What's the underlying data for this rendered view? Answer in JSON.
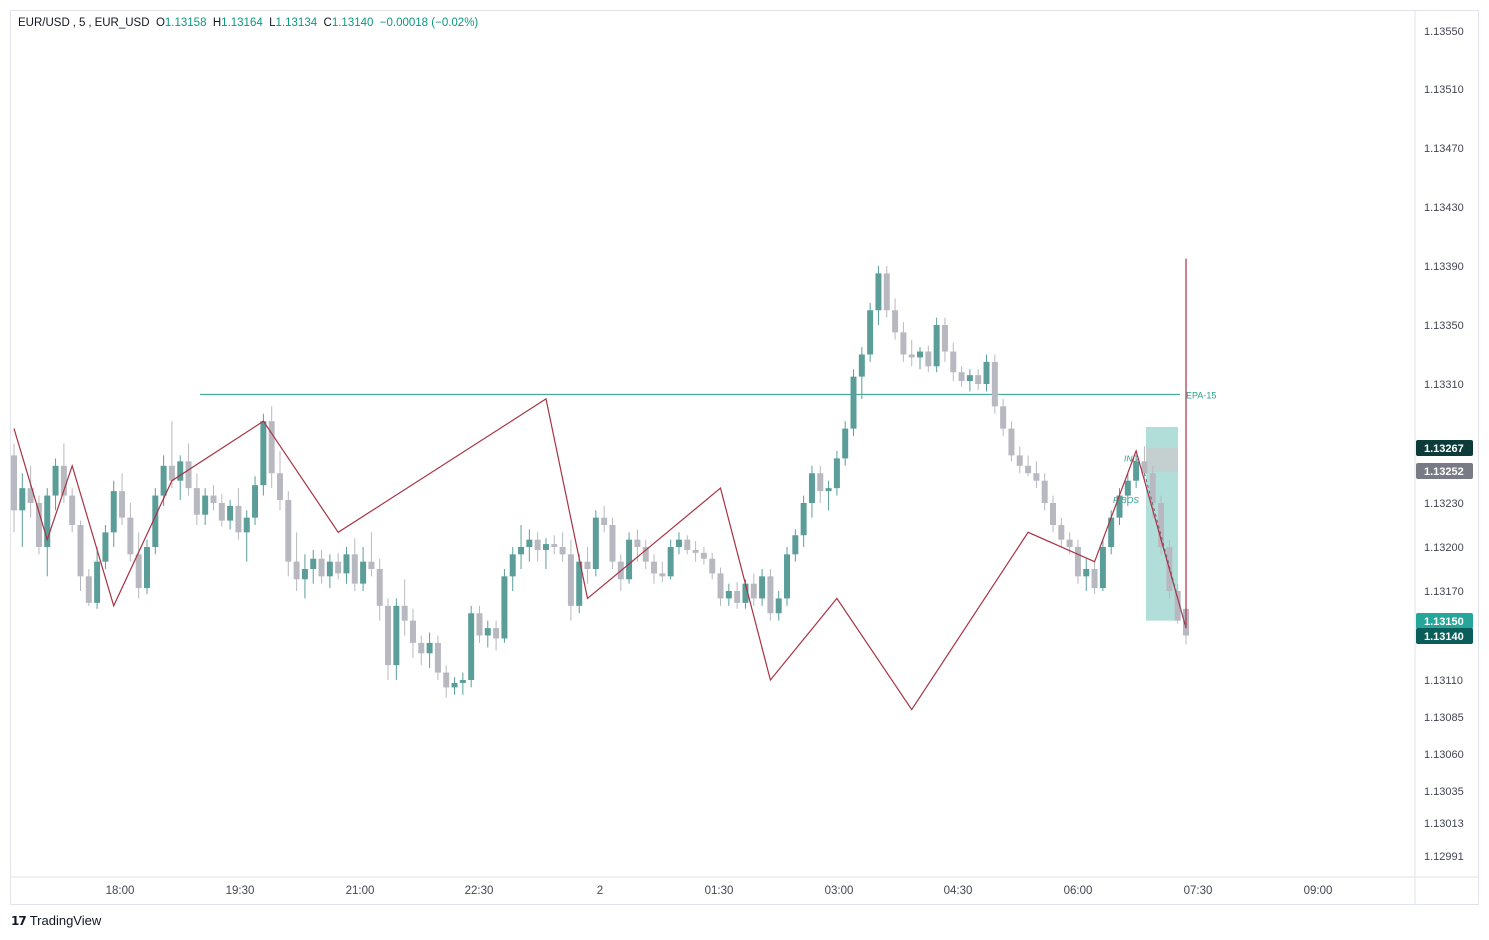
{
  "header": {
    "symbol": "EUR/USD",
    "interval": "5",
    "source": "EUR_USD",
    "o_label": "O",
    "o_value": "1.13158",
    "h_label": "H",
    "h_value": "1.13164",
    "l_label": "L",
    "l_value": "1.13134",
    "c_label": "C",
    "c_value": "1.13140",
    "change": "−0.00018 (−0.02%)"
  },
  "brand": {
    "name": "TradingView",
    "logo_icon": "tradingview-logo-icon"
  },
  "colors": {
    "up": "#5b9e99",
    "down": "#b8b8c0",
    "zigzag": "#a83244",
    "level": "#2aa08a",
    "box_green": "#a5d8d3",
    "box_gray": "#c8cccc",
    "tag_dark": "#0d3b3a",
    "tag_gray": "#787b86",
    "tag_green": "#26a69a",
    "tag_teal": "#0b5d5a"
  },
  "chart_data": {
    "type": "candlestick",
    "ylim": [
      1.12975,
      1.13565
    ],
    "y_ticks": [
      "1.13550",
      "1.13510",
      "1.13470",
      "1.13430",
      "1.13390",
      "1.13350",
      "1.13310",
      "1.13230",
      "1.13200",
      "1.13170",
      "1.13110",
      "1.13085",
      "1.13060",
      "1.13035",
      "1.13013",
      "1.12991"
    ],
    "x_ticks": [
      "18:00",
      "19:30",
      "21:00",
      "22:30",
      "2",
      "01:30",
      "03:00",
      "04:30",
      "06:00",
      "07:30",
      "09:00"
    ],
    "price_tags": [
      {
        "value": "1.13267",
        "style": "dark"
      },
      {
        "value": "1.13252",
        "style": "gray"
      },
      {
        "value": "1.13150",
        "style": "green"
      },
      {
        "value": "1.13140",
        "style": "teal"
      }
    ],
    "level_line": {
      "label": "EPA-15",
      "price": 1.13303
    },
    "annotations": [
      {
        "text": "IND",
        "price": 1.1326
      },
      {
        "text": "F-BOS",
        "price": 1.13232
      }
    ],
    "zigzag": [
      [
        1.1328,
        1.13205,
        1.13255,
        1.1316,
        1.13245,
        1.13285,
        1.1321,
        1.133,
        1.13165,
        1.1324,
        1.1311,
        1.13165,
        1.1309,
        1.1321,
        1.1319,
        1.13265,
        1.13145,
        1.13395,
        1.13305,
        1.13175,
        1.13255,
        1.1325,
        1.13155
      ]
    ],
    "zigzag_time_index": [
      0,
      4,
      7,
      12,
      19,
      30,
      39,
      64,
      69,
      85,
      91,
      99,
      108,
      122,
      130,
      135,
      168,
      204,
      235,
      277,
      290,
      295,
      305
    ],
    "candles": [
      [
        1.13262,
        1.1327,
        1.1321,
        1.13225
      ],
      [
        1.13225,
        1.1325,
        1.132,
        1.1324
      ],
      [
        1.1324,
        1.13255,
        1.1322,
        1.1323
      ],
      [
        1.1323,
        1.13235,
        1.13195,
        1.132
      ],
      [
        1.132,
        1.1324,
        1.1318,
        1.13235
      ],
      [
        1.13235,
        1.1326,
        1.13225,
        1.13255
      ],
      [
        1.13255,
        1.1327,
        1.1323,
        1.13235
      ],
      [
        1.13235,
        1.1324,
        1.1321,
        1.13215
      ],
      [
        1.13215,
        1.13218,
        1.1317,
        1.1318
      ],
      [
        1.1318,
        1.13185,
        1.1316,
        1.13162
      ],
      [
        1.13162,
        1.132,
        1.13158,
        1.1319
      ],
      [
        1.1319,
        1.13215,
        1.13185,
        1.1321
      ],
      [
        1.1321,
        1.13245,
        1.132,
        1.13238
      ],
      [
        1.13238,
        1.1325,
        1.13215,
        1.1322
      ],
      [
        1.1322,
        1.1323,
        1.1319,
        1.13195
      ],
      [
        1.13195,
        1.1321,
        1.13165,
        1.13172
      ],
      [
        1.13172,
        1.13205,
        1.13168,
        1.132
      ],
      [
        1.132,
        1.1324,
        1.13195,
        1.13235
      ],
      [
        1.13235,
        1.13262,
        1.13228,
        1.13255
      ],
      [
        1.13255,
        1.13285,
        1.1324,
        1.13245
      ],
      [
        1.13245,
        1.13262,
        1.13232,
        1.13258
      ],
      [
        1.13258,
        1.1327,
        1.13235,
        1.1324
      ],
      [
        1.1324,
        1.1325,
        1.13215,
        1.13222
      ],
      [
        1.13222,
        1.1324,
        1.13215,
        1.13235
      ],
      [
        1.13235,
        1.13242,
        1.13225,
        1.1323
      ],
      [
        1.1323,
        1.13236,
        1.13214,
        1.13218
      ],
      [
        1.13218,
        1.13232,
        1.13212,
        1.13228
      ],
      [
        1.13228,
        1.1324,
        1.13205,
        1.1321
      ],
      [
        1.1321,
        1.13225,
        1.1319,
        1.1322
      ],
      [
        1.1322,
        1.13248,
        1.13215,
        1.13242
      ],
      [
        1.13242,
        1.1329,
        1.13235,
        1.13285
      ],
      [
        1.13285,
        1.13295,
        1.1324,
        1.1325
      ],
      [
        1.1325,
        1.13265,
        1.13225,
        1.13232
      ],
      [
        1.13232,
        1.13238,
        1.1318,
        1.1319
      ],
      [
        1.1319,
        1.1321,
        1.1317,
        1.13178
      ],
      [
        1.13178,
        1.13195,
        1.13165,
        1.13185
      ],
      [
        1.13185,
        1.13198,
        1.13175,
        1.13192
      ],
      [
        1.13192,
        1.13198,
        1.13175,
        1.1318
      ],
      [
        1.1318,
        1.13195,
        1.13172,
        1.1319
      ],
      [
        1.1319,
        1.13196,
        1.13178,
        1.13182
      ],
      [
        1.13182,
        1.132,
        1.13175,
        1.13195
      ],
      [
        1.13195,
        1.13206,
        1.1317,
        1.13175
      ],
      [
        1.13175,
        1.132,
        1.1317,
        1.1319
      ],
      [
        1.1319,
        1.1321,
        1.1318,
        1.13185
      ],
      [
        1.13185,
        1.13192,
        1.1315,
        1.1316
      ],
      [
        1.1316,
        1.13165,
        1.1311,
        1.1312
      ],
      [
        1.1312,
        1.13165,
        1.1311,
        1.1316
      ],
      [
        1.1316,
        1.13178,
        1.1314,
        1.1315
      ],
      [
        1.1315,
        1.13158,
        1.13125,
        1.13135
      ],
      [
        1.13135,
        1.1314,
        1.1312,
        1.13128
      ],
      [
        1.13128,
        1.13142,
        1.13118,
        1.13135
      ],
      [
        1.13135,
        1.1314,
        1.1311,
        1.13115
      ],
      [
        1.13115,
        1.1312,
        1.13098,
        1.13105
      ],
      [
        1.13105,
        1.13112,
        1.131,
        1.13108
      ],
      [
        1.13108,
        1.13115,
        1.131,
        1.1311
      ],
      [
        1.1311,
        1.1316,
        1.13105,
        1.13155
      ],
      [
        1.13155,
        1.1316,
        1.13135,
        1.1314
      ],
      [
        1.1314,
        1.1315,
        1.13132,
        1.13145
      ],
      [
        1.13145,
        1.1315,
        1.1313,
        1.13138
      ],
      [
        1.13138,
        1.13185,
        1.13135,
        1.1318
      ],
      [
        1.1318,
        1.132,
        1.1317,
        1.13195
      ],
      [
        1.13195,
        1.13215,
        1.13185,
        1.132
      ],
      [
        1.132,
        1.13212,
        1.1319,
        1.13205
      ],
      [
        1.13205,
        1.1321,
        1.1319,
        1.13198
      ],
      [
        1.13198,
        1.13206,
        1.13185,
        1.13202
      ],
      [
        1.13202,
        1.13208,
        1.13195,
        1.132
      ],
      [
        1.132,
        1.1321,
        1.1319,
        1.13195
      ],
      [
        1.13195,
        1.13205,
        1.1315,
        1.1316
      ],
      [
        1.1316,
        1.13195,
        1.13155,
        1.1319
      ],
      [
        1.1319,
        1.132,
        1.13175,
        1.13185
      ],
      [
        1.13185,
        1.13225,
        1.1318,
        1.1322
      ],
      [
        1.1322,
        1.13228,
        1.1321,
        1.13215
      ],
      [
        1.13215,
        1.1322,
        1.13185,
        1.1319
      ],
      [
        1.1319,
        1.13195,
        1.1317,
        1.13178
      ],
      [
        1.13178,
        1.1321,
        1.13175,
        1.13205
      ],
      [
        1.13205,
        1.13212,
        1.1319,
        1.132
      ],
      [
        1.132,
        1.13205,
        1.13185,
        1.1319
      ],
      [
        1.1319,
        1.13195,
        1.13175,
        1.13182
      ],
      [
        1.13182,
        1.1319,
        1.13176,
        1.1318
      ],
      [
        1.1318,
        1.13205,
        1.13178,
        1.132
      ],
      [
        1.132,
        1.1321,
        1.13195,
        1.13205
      ],
      [
        1.13205,
        1.13208,
        1.13195,
        1.13198
      ],
      [
        1.13198,
        1.13204,
        1.1319,
        1.13196
      ],
      [
        1.13196,
        1.132,
        1.13188,
        1.13192
      ],
      [
        1.13192,
        1.13196,
        1.13178,
        1.13182
      ],
      [
        1.13182,
        1.13186,
        1.1316,
        1.13165
      ],
      [
        1.13165,
        1.13175,
        1.1316,
        1.1317
      ],
      [
        1.1317,
        1.13176,
        1.13158,
        1.13162
      ],
      [
        1.13162,
        1.13178,
        1.13158,
        1.13175
      ],
      [
        1.13175,
        1.13182,
        1.1316,
        1.13165
      ],
      [
        1.13165,
        1.13185,
        1.1316,
        1.1318
      ],
      [
        1.1318,
        1.13185,
        1.1315,
        1.13155
      ],
      [
        1.13155,
        1.1317,
        1.1315,
        1.13165
      ],
      [
        1.13165,
        1.132,
        1.1316,
        1.13195
      ],
      [
        1.13195,
        1.13212,
        1.1319,
        1.13208
      ],
      [
        1.13208,
        1.13235,
        1.132,
        1.1323
      ],
      [
        1.1323,
        1.13255,
        1.1322,
        1.1325
      ],
      [
        1.1325,
        1.13255,
        1.1323,
        1.13238
      ],
      [
        1.13238,
        1.13245,
        1.13225,
        1.1324
      ],
      [
        1.1324,
        1.13265,
        1.13235,
        1.1326
      ],
      [
        1.1326,
        1.13285,
        1.13255,
        1.1328
      ],
      [
        1.1328,
        1.1332,
        1.13275,
        1.13315
      ],
      [
        1.13315,
        1.13335,
        1.133,
        1.1333
      ],
      [
        1.1333,
        1.13365,
        1.13325,
        1.1336
      ],
      [
        1.1336,
        1.1339,
        1.1335,
        1.13385
      ],
      [
        1.13385,
        1.1339,
        1.13355,
        1.1336
      ],
      [
        1.1336,
        1.13368,
        1.1334,
        1.13345
      ],
      [
        1.13345,
        1.13352,
        1.13325,
        1.1333
      ],
      [
        1.1333,
        1.1334,
        1.13322,
        1.13328
      ],
      [
        1.13328,
        1.13335,
        1.1332,
        1.13332
      ],
      [
        1.13332,
        1.13336,
        1.13318,
        1.13322
      ],
      [
        1.13322,
        1.13355,
        1.13318,
        1.1335
      ],
      [
        1.1335,
        1.13355,
        1.13325,
        1.13332
      ],
      [
        1.13332,
        1.13338,
        1.13312,
        1.13318
      ],
      [
        1.13318,
        1.13322,
        1.13308,
        1.13312
      ],
      [
        1.13312,
        1.1332,
        1.13305,
        1.13316
      ],
      [
        1.13316,
        1.1332,
        1.13306,
        1.1331
      ],
      [
        1.1331,
        1.1333,
        1.13305,
        1.13325
      ],
      [
        1.13325,
        1.1333,
        1.1329,
        1.13295
      ],
      [
        1.13295,
        1.133,
        1.13275,
        1.1328
      ],
      [
        1.1328,
        1.13285,
        1.13258,
        1.13262
      ],
      [
        1.13262,
        1.13268,
        1.1325,
        1.13255
      ],
      [
        1.13255,
        1.13262,
        1.13248,
        1.1325
      ],
      [
        1.1325,
        1.13258,
        1.1324,
        1.13245
      ],
      [
        1.13245,
        1.1325,
        1.13225,
        1.1323
      ],
      [
        1.1323,
        1.13235,
        1.1321,
        1.13215
      ],
      [
        1.13215,
        1.1322,
        1.132,
        1.13205
      ],
      [
        1.13205,
        1.1321,
        1.13195,
        1.132
      ],
      [
        1.132,
        1.13205,
        1.13175,
        1.1318
      ],
      [
        1.1318,
        1.13192,
        1.1317,
        1.13185
      ],
      [
        1.13185,
        1.1319,
        1.13168,
        1.13172
      ],
      [
        1.13172,
        1.13205,
        1.1317,
        1.132
      ],
      [
        1.132,
        1.13225,
        1.13195,
        1.1322
      ],
      [
        1.1322,
        1.1324,
        1.13215,
        1.13235
      ],
      [
        1.13235,
        1.1325,
        1.13228,
        1.13245
      ],
      [
        1.13245,
        1.13262,
        1.1324,
        1.13258
      ],
      [
        1.13258,
        1.13268,
        1.13245,
        1.1325
      ],
      [
        1.1325,
        1.13255,
        1.1322,
        1.1323
      ],
      [
        1.1323,
        1.13235,
        1.13195,
        1.132
      ],
      [
        1.132,
        1.13205,
        1.13165,
        1.1317
      ],
      [
        1.1317,
        1.13175,
        1.13148,
        1.1315
      ],
      [
        1.13158,
        1.13164,
        1.13134,
        1.1314
      ]
    ]
  }
}
